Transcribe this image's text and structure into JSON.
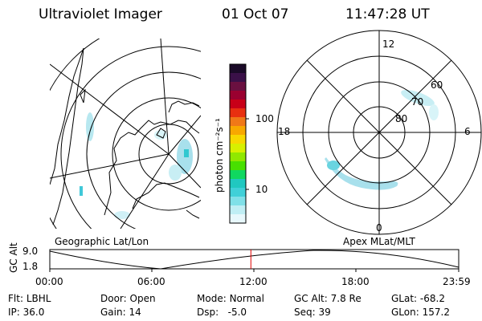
{
  "header": {
    "title": "Ultraviolet Imager",
    "date": "01 Oct 07",
    "time": "11:47:28 UT"
  },
  "colorbar": {
    "label": "photon cm⁻²s⁻¹",
    "ticks": [
      "100",
      "10"
    ],
    "colors": [
      "#1a0a28",
      "#3a1048",
      "#6a1040",
      "#9a0030",
      "#c80018",
      "#e83010",
      "#f07818",
      "#f8a800",
      "#f8d800",
      "#d8f000",
      "#90e800",
      "#48e000",
      "#10d860",
      "#20c8c0",
      "#40d0d8",
      "#80e0e8",
      "#c0eef4",
      "#e8f8fc"
    ]
  },
  "geo_map": {
    "label": "Geographic Lat/Lon"
  },
  "polar_map": {
    "label": "Apex MLat/MLT",
    "mlt_labels": {
      "top": "12",
      "left": "18",
      "right": "6",
      "bottom": "0"
    },
    "lat_labels": [
      "60",
      "70",
      "80"
    ]
  },
  "altitude_plot": {
    "ylabel": "GC Alt",
    "yticks": [
      "9.0",
      "1.8"
    ],
    "xticks": [
      "00:00",
      "06:00",
      "12:00",
      "18:00",
      "23:59"
    ],
    "marker_time_hours": 11.8
  },
  "info": {
    "filter_label": "Flt:",
    "filter": "LBHL",
    "ip_label": "IP:",
    "ip": "36.0",
    "door_label": "Door:",
    "door": "Open",
    "gain_label": "Gain:",
    "gain": "14",
    "mode_label": "Mode:",
    "mode": "Normal",
    "dsp_label": "Dsp:",
    "dsp": "-5.0",
    "gcalt_label": "GC Alt:",
    "gcalt": "7.8 Re",
    "seq_label": "Seq:",
    "seq": "39",
    "glat_label": "GLat:",
    "glat": "-68.2",
    "glon_label": "GLon:",
    "glon": "157.2"
  }
}
